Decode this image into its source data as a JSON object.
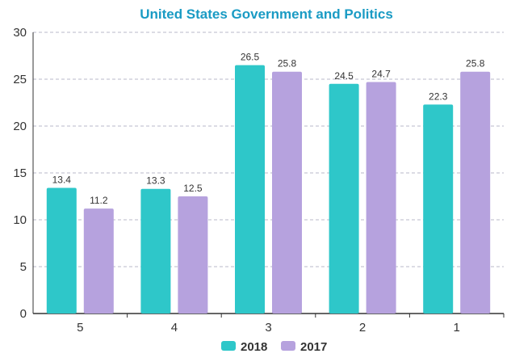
{
  "chart_data": {
    "type": "bar",
    "title": "United States Government and Politics",
    "categories": [
      "5",
      "4",
      "3",
      "2",
      "1"
    ],
    "series": [
      {
        "name": "2018",
        "color": "#2ec7c9",
        "values": [
          13.4,
          13.3,
          26.5,
          24.5,
          22.3
        ]
      },
      {
        "name": "2017",
        "color": "#b6a2de",
        "values": [
          11.2,
          12.5,
          25.8,
          24.7,
          25.8
        ]
      }
    ],
    "ylim": [
      0,
      30
    ],
    "yticks": [
      0,
      5,
      10,
      15,
      20,
      25,
      30
    ],
    "xlabel": "",
    "ylabel": "",
    "grid": true,
    "legend": "bottom-center",
    "title_color": "#1a9bc4"
  }
}
